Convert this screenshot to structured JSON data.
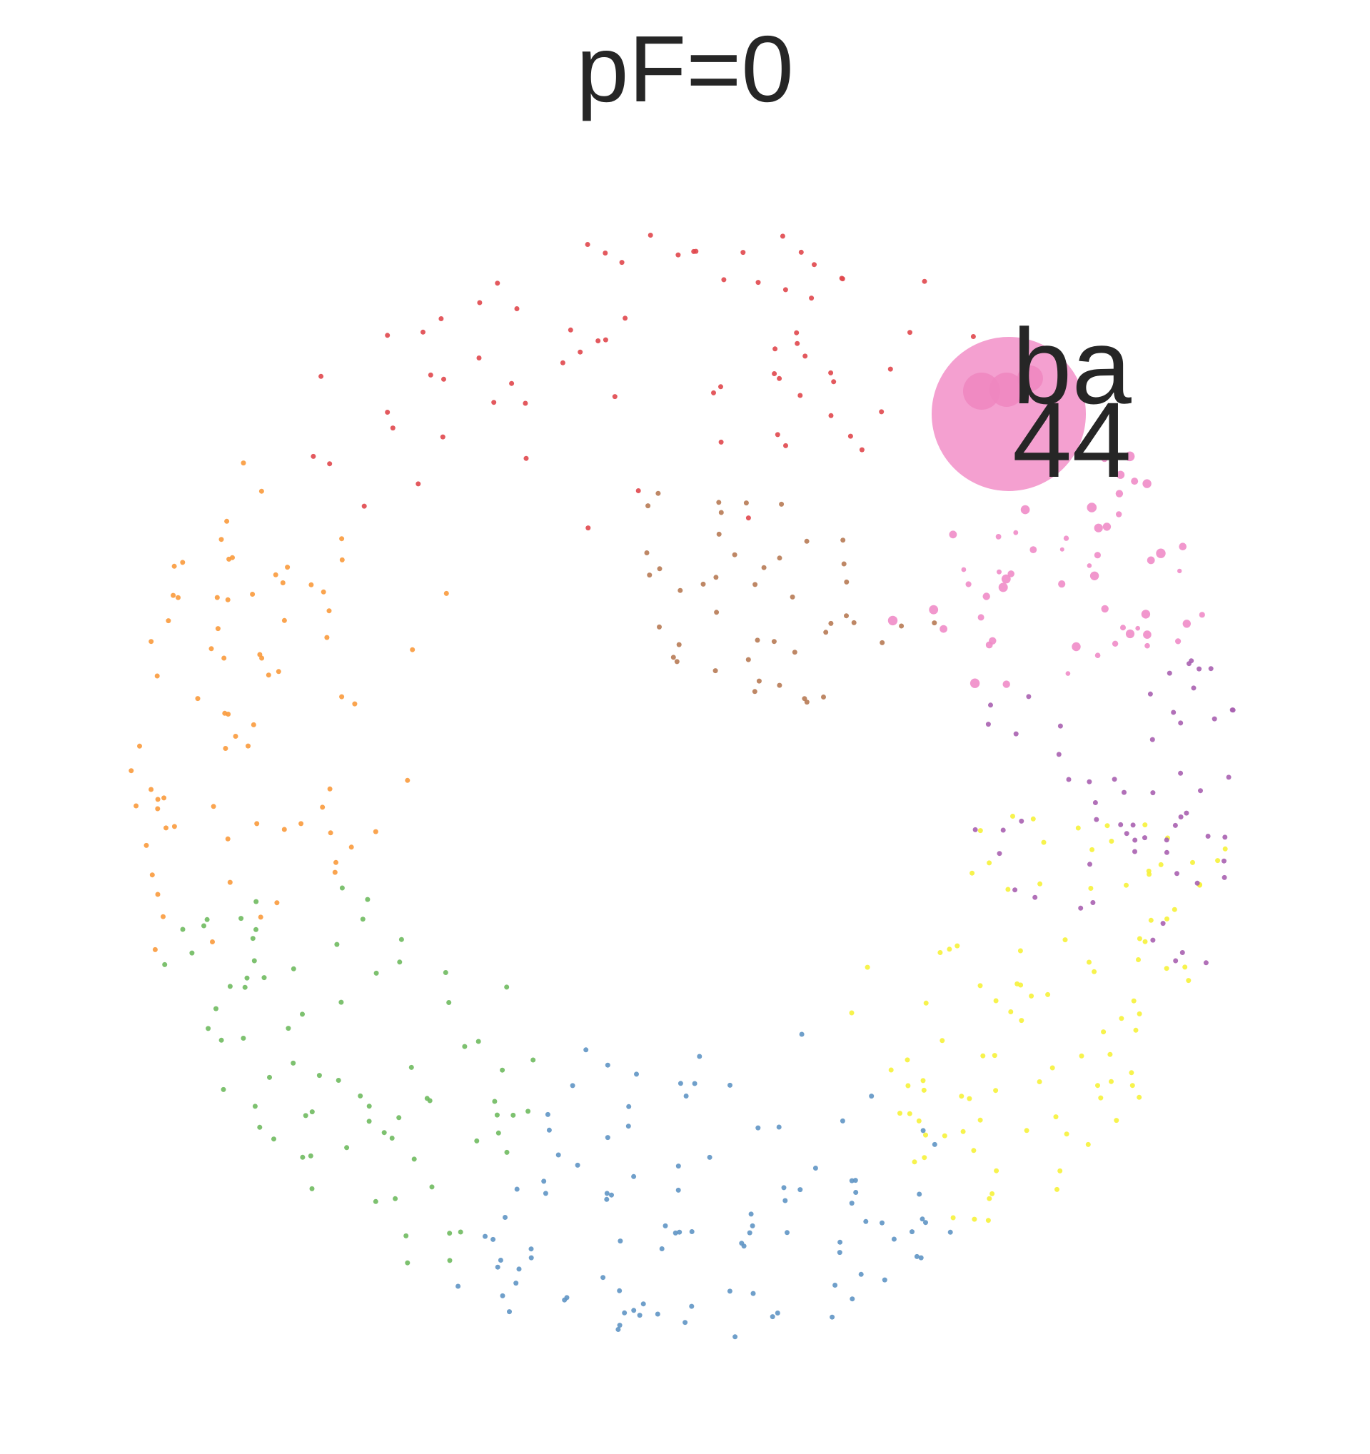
{
  "title": "pF=0",
  "hub": {
    "label_top": "ba",
    "label_bottom": "44",
    "color": "#f4a0d0"
  },
  "communities": [
    {
      "name": "red",
      "color": "#e0474c",
      "nodes": 75
    },
    {
      "name": "orange",
      "color": "#f99a3c",
      "nodes": 75
    },
    {
      "name": "green",
      "color": "#6fba5f",
      "nodes": 75
    },
    {
      "name": "blue",
      "color": "#5f95c4",
      "nodes": 100
    },
    {
      "name": "yellow",
      "color": "#f6f23a",
      "nodes": 100
    },
    {
      "name": "purple",
      "color": "#a861b0",
      "nodes": 60
    },
    {
      "name": "pink",
      "color": "#f08cc8",
      "nodes": 55
    },
    {
      "name": "brown",
      "color": "#b77a54",
      "nodes": 45
    }
  ]
}
